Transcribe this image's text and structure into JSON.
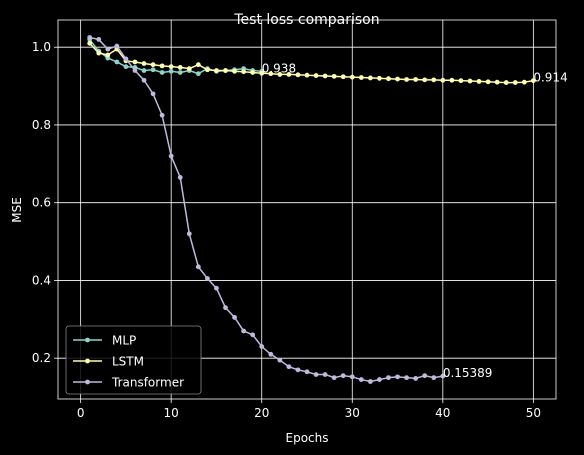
{
  "chart_data": {
    "type": "line",
    "title": "Test loss comparison",
    "xlabel": "Epochs",
    "ylabel": "MSE",
    "xlim": [
      -2.5,
      52.5
    ],
    "ylim": [
      0.095,
      1.07
    ],
    "x_ticks": [
      0,
      10,
      20,
      30,
      40,
      50
    ],
    "y_ticks": [
      0.2,
      0.4,
      0.6,
      0.8,
      1.0
    ],
    "x_tick_labels": [
      "0",
      "10",
      "20",
      "30",
      "40",
      "50"
    ],
    "y_tick_labels": [
      "0.2",
      "0.4",
      "0.6",
      "0.8",
      "1.0"
    ],
    "grid": true,
    "legend_position": "lower-left",
    "series": [
      {
        "name": "MLP",
        "color": "#8dd3c7",
        "x": [
          1,
          2,
          3,
          4,
          5,
          6,
          7,
          8,
          9,
          10,
          11,
          12,
          13,
          14,
          15,
          16,
          17,
          18,
          19,
          20
        ],
        "y": [
          1.02,
          0.99,
          0.972,
          0.962,
          0.95,
          0.948,
          0.94,
          0.942,
          0.935,
          0.938,
          0.935,
          0.94,
          0.932,
          0.945,
          0.938,
          0.94,
          0.942,
          0.945,
          0.94,
          0.938
        ],
        "end_label": "0.938"
      },
      {
        "name": "LSTM",
        "color": "#ffffb3",
        "x": [
          1,
          2,
          3,
          4,
          5,
          6,
          7,
          8,
          9,
          10,
          11,
          12,
          13,
          14,
          15,
          16,
          17,
          18,
          19,
          20,
          21,
          22,
          23,
          24,
          25,
          26,
          27,
          28,
          29,
          30,
          31,
          32,
          33,
          34,
          35,
          36,
          37,
          38,
          39,
          40,
          41,
          42,
          43,
          44,
          45,
          46,
          47,
          48,
          49,
          50
        ],
        "y": [
          1.01,
          0.985,
          0.98,
          0.995,
          0.965,
          0.962,
          0.958,
          0.955,
          0.952,
          0.95,
          0.948,
          0.945,
          0.955,
          0.942,
          0.94,
          0.94,
          0.938,
          0.937,
          0.935,
          0.933,
          0.932,
          0.93,
          0.93,
          0.929,
          0.928,
          0.927,
          0.926,
          0.925,
          0.924,
          0.923,
          0.922,
          0.921,
          0.92,
          0.919,
          0.918,
          0.917,
          0.917,
          0.916,
          0.916,
          0.915,
          0.915,
          0.914,
          0.913,
          0.912,
          0.911,
          0.91,
          0.909,
          0.909,
          0.91,
          0.914
        ],
        "end_label": "0.914"
      },
      {
        "name": "Transformer",
        "color": "#bebada",
        "x": [
          1,
          2,
          3,
          4,
          5,
          6,
          7,
          8,
          9,
          10,
          11,
          12,
          13,
          14,
          15,
          16,
          17,
          18,
          19,
          20,
          21,
          22,
          23,
          24,
          25,
          26,
          27,
          28,
          29,
          30,
          31,
          32,
          33,
          34,
          35,
          36,
          37,
          38,
          39,
          40
        ],
        "y": [
          1.025,
          1.02,
          0.995,
          1.003,
          0.97,
          0.94,
          0.915,
          0.88,
          0.825,
          0.72,
          0.665,
          0.52,
          0.435,
          0.405,
          0.38,
          0.33,
          0.305,
          0.27,
          0.26,
          0.23,
          0.21,
          0.195,
          0.178,
          0.17,
          0.165,
          0.158,
          0.158,
          0.15,
          0.155,
          0.152,
          0.145,
          0.14,
          0.145,
          0.15,
          0.152,
          0.15,
          0.148,
          0.155,
          0.15,
          0.15389
        ],
        "end_label": "0.15389"
      }
    ]
  }
}
